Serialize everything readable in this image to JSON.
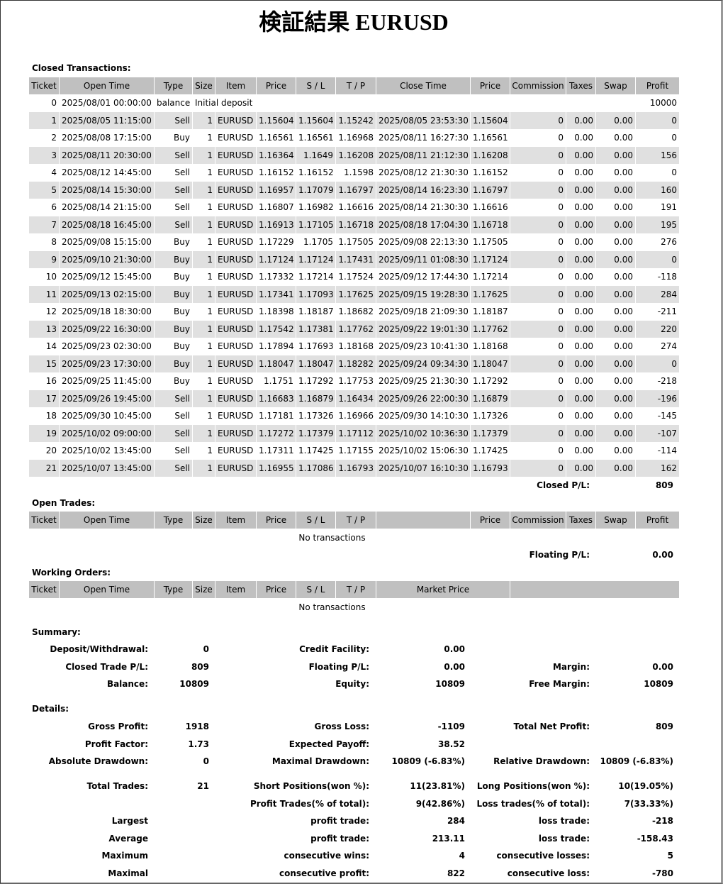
{
  "title": "検証結果 EURUSD",
  "closed": {
    "label": "Closed Transactions:",
    "headers": [
      "Ticket",
      "Open Time",
      "Type",
      "Size",
      "Item",
      "Price",
      "S / L",
      "T / P",
      "Close Time",
      "Price",
      "Commission",
      "Taxes",
      "Swap",
      "Profit"
    ],
    "rows": [
      [
        "0",
        "2025/08/01 00:00:00",
        "balance",
        "Initial deposit",
        "10000"
      ],
      [
        "1",
        "2025/08/05 11:15:00",
        "Sell",
        "1",
        "EURUSD",
        "1.15604",
        "1.15604",
        "1.15242",
        "2025/08/05 23:53:30",
        "1.15604",
        "0",
        "0.00",
        "0.00",
        "0"
      ],
      [
        "2",
        "2025/08/08 17:15:00",
        "Buy",
        "1",
        "EURUSD",
        "1.16561",
        "1.16561",
        "1.16968",
        "2025/08/11 16:27:30",
        "1.16561",
        "0",
        "0.00",
        "0.00",
        "0"
      ],
      [
        "3",
        "2025/08/11 20:30:00",
        "Sell",
        "1",
        "EURUSD",
        "1.16364",
        "1.1649",
        "1.16208",
        "2025/08/11 21:12:30",
        "1.16208",
        "0",
        "0.00",
        "0.00",
        "156"
      ],
      [
        "4",
        "2025/08/12 14:45:00",
        "Sell",
        "1",
        "EURUSD",
        "1.16152",
        "1.16152",
        "1.1598",
        "2025/08/12 21:30:30",
        "1.16152",
        "0",
        "0.00",
        "0.00",
        "0"
      ],
      [
        "5",
        "2025/08/14 15:30:00",
        "Sell",
        "1",
        "EURUSD",
        "1.16957",
        "1.17079",
        "1.16797",
        "2025/08/14 16:23:30",
        "1.16797",
        "0",
        "0.00",
        "0.00",
        "160"
      ],
      [
        "6",
        "2025/08/14 21:15:00",
        "Sell",
        "1",
        "EURUSD",
        "1.16807",
        "1.16982",
        "1.16616",
        "2025/08/14 21:30:30",
        "1.16616",
        "0",
        "0.00",
        "0.00",
        "191"
      ],
      [
        "7",
        "2025/08/18 16:45:00",
        "Sell",
        "1",
        "EURUSD",
        "1.16913",
        "1.17105",
        "1.16718",
        "2025/08/18 17:04:30",
        "1.16718",
        "0",
        "0.00",
        "0.00",
        "195"
      ],
      [
        "8",
        "2025/09/08 15:15:00",
        "Buy",
        "1",
        "EURUSD",
        "1.17229",
        "1.1705",
        "1.17505",
        "2025/09/08 22:13:30",
        "1.17505",
        "0",
        "0.00",
        "0.00",
        "276"
      ],
      [
        "9",
        "2025/09/10 21:30:00",
        "Buy",
        "1",
        "EURUSD",
        "1.17124",
        "1.17124",
        "1.17431",
        "2025/09/11 01:08:30",
        "1.17124",
        "0",
        "0.00",
        "0.00",
        "0"
      ],
      [
        "10",
        "2025/09/12 15:45:00",
        "Buy",
        "1",
        "EURUSD",
        "1.17332",
        "1.17214",
        "1.17524",
        "2025/09/12 17:44:30",
        "1.17214",
        "0",
        "0.00",
        "0.00",
        "-118"
      ],
      [
        "11",
        "2025/09/13 02:15:00",
        "Buy",
        "1",
        "EURUSD",
        "1.17341",
        "1.17093",
        "1.17625",
        "2025/09/15 19:28:30",
        "1.17625",
        "0",
        "0.00",
        "0.00",
        "284"
      ],
      [
        "12",
        "2025/09/18 18:30:00",
        "Buy",
        "1",
        "EURUSD",
        "1.18398",
        "1.18187",
        "1.18682",
        "2025/09/18 21:09:30",
        "1.18187",
        "0",
        "0.00",
        "0.00",
        "-211"
      ],
      [
        "13",
        "2025/09/22 16:30:00",
        "Buy",
        "1",
        "EURUSD",
        "1.17542",
        "1.17381",
        "1.17762",
        "2025/09/22 19:01:30",
        "1.17762",
        "0",
        "0.00",
        "0.00",
        "220"
      ],
      [
        "14",
        "2025/09/23 02:30:00",
        "Buy",
        "1",
        "EURUSD",
        "1.17894",
        "1.17693",
        "1.18168",
        "2025/09/23 10:41:30",
        "1.18168",
        "0",
        "0.00",
        "0.00",
        "274"
      ],
      [
        "15",
        "2025/09/23 17:30:00",
        "Buy",
        "1",
        "EURUSD",
        "1.18047",
        "1.18047",
        "1.18282",
        "2025/09/24 09:34:30",
        "1.18047",
        "0",
        "0.00",
        "0.00",
        "0"
      ],
      [
        "16",
        "2025/09/25 11:45:00",
        "Buy",
        "1",
        "EURUSD",
        "1.1751",
        "1.17292",
        "1.17753",
        "2025/09/25 21:30:30",
        "1.17292",
        "0",
        "0.00",
        "0.00",
        "-218"
      ],
      [
        "17",
        "2025/09/26 19:45:00",
        "Sell",
        "1",
        "EURUSD",
        "1.16683",
        "1.16879",
        "1.16434",
        "2025/09/26 22:00:30",
        "1.16879",
        "0",
        "0.00",
        "0.00",
        "-196"
      ],
      [
        "18",
        "2025/09/30 10:45:00",
        "Sell",
        "1",
        "EURUSD",
        "1.17181",
        "1.17326",
        "1.16966",
        "2025/09/30 14:10:30",
        "1.17326",
        "0",
        "0.00",
        "0.00",
        "-145"
      ],
      [
        "19",
        "2025/10/02 09:00:00",
        "Sell",
        "1",
        "EURUSD",
        "1.17272",
        "1.17379",
        "1.17112",
        "2025/10/02 10:36:30",
        "1.17379",
        "0",
        "0.00",
        "0.00",
        "-107"
      ],
      [
        "20",
        "2025/10/02 13:45:00",
        "Sell",
        "1",
        "EURUSD",
        "1.17311",
        "1.17425",
        "1.17155",
        "2025/10/02 15:06:30",
        "1.17425",
        "0",
        "0.00",
        "0.00",
        "-114"
      ],
      [
        "21",
        "2025/10/07 13:45:00",
        "Sell",
        "1",
        "EURUSD",
        "1.16955",
        "1.17086",
        "1.16793",
        "2025/10/07 16:10:30",
        "1.16793",
        "0",
        "0.00",
        "0.00",
        "162"
      ]
    ],
    "total_label": "Closed P/L:",
    "total_value": "809"
  },
  "open": {
    "label": "Open Trades:",
    "headers": [
      "Ticket",
      "Open Time",
      "Type",
      "Size",
      "Item",
      "Price",
      "S / L",
      "T / P",
      "Price",
      "Commission",
      "Taxes",
      "Swap",
      "Profit"
    ],
    "empty_text": "No transactions",
    "total_label": "Floating P/L:",
    "total_value": "0.00"
  },
  "working": {
    "label": "Working Orders:",
    "headers": [
      "Ticket",
      "Open Time",
      "Type",
      "Size",
      "Item",
      "Price",
      "S / L",
      "T / P",
      "Market Price"
    ],
    "empty_text": "No transactions"
  },
  "summary": {
    "label": "Summary:",
    "rows": [
      {
        "left": {
          "label": "Deposit/Withdrawal:",
          "value": "0"
        },
        "middle": {
          "label": "Credit Facility:",
          "value": "0.00"
        }
      },
      {
        "left": {
          "label": "Closed Trade P/L:",
          "value": "809"
        },
        "middle": {
          "label": "Floating P/L:",
          "value": "0.00"
        },
        "right": {
          "label": "Margin:",
          "value": "0.00"
        }
      },
      {
        "left": {
          "label": "Balance:",
          "value": "10809"
        },
        "middle": {
          "label": "Equity:",
          "value": "10809"
        },
        "right": {
          "label": "Free Margin:",
          "value": "10809"
        }
      }
    ]
  },
  "details": {
    "label": "Details:",
    "rows": [
      {
        "left": {
          "label": "Gross Profit:",
          "value": "1918"
        },
        "middle": {
          "label": "Gross Loss:",
          "value": "-1109"
        },
        "right": {
          "label": "Total Net Profit:",
          "value": "809"
        }
      },
      {
        "left": {
          "label": "Profit Factor:",
          "value": "1.73"
        },
        "middle": {
          "label": "Expected Payoff:",
          "value": "38.52"
        }
      },
      {
        "left": {
          "label": "Absolute Drawdown:",
          "value": "0"
        },
        "middle": {
          "label": "Maximal Drawdown:",
          "value": "10809 (-6.83%)"
        },
        "right": {
          "label": "Relative Drawdown:",
          "value": "10809 (-6.83%)"
        }
      },
      {
        "left": {
          "label": "Total Trades:",
          "value": "21"
        },
        "middle": {
          "label": "Short Positions(won %):",
          "value": "11(23.81%)"
        },
        "right": {
          "label": "Long Positions(won %):",
          "value": "10(19.05%)"
        }
      },
      {
        "middle": {
          "label": "Profit Trades(% of total):",
          "value": "9(42.86%)"
        },
        "right": {
          "label": "Loss trades(% of total):",
          "value": "7(33.33%)"
        }
      },
      {
        "left": {
          "label": "Largest"
        },
        "middle": {
          "label": "profit trade:",
          "value": "284"
        },
        "right": {
          "label": "loss trade:",
          "value": "-218"
        }
      },
      {
        "left": {
          "label": "Average"
        },
        "middle": {
          "label": "profit trade:",
          "value": "213.11"
        },
        "right": {
          "label": "loss trade:",
          "value": "-158.43"
        }
      },
      {
        "left": {
          "label": "Maximum"
        },
        "middle": {
          "label": "consecutive wins:",
          "value": "4"
        },
        "right": {
          "label": "consecutive losses:",
          "value": "5"
        }
      },
      {
        "left": {
          "label": "Maximal"
        },
        "middle": {
          "label": "consecutive profit:",
          "value": "822"
        },
        "right": {
          "label": "consecutive loss:",
          "value": "-780"
        }
      }
    ]
  }
}
